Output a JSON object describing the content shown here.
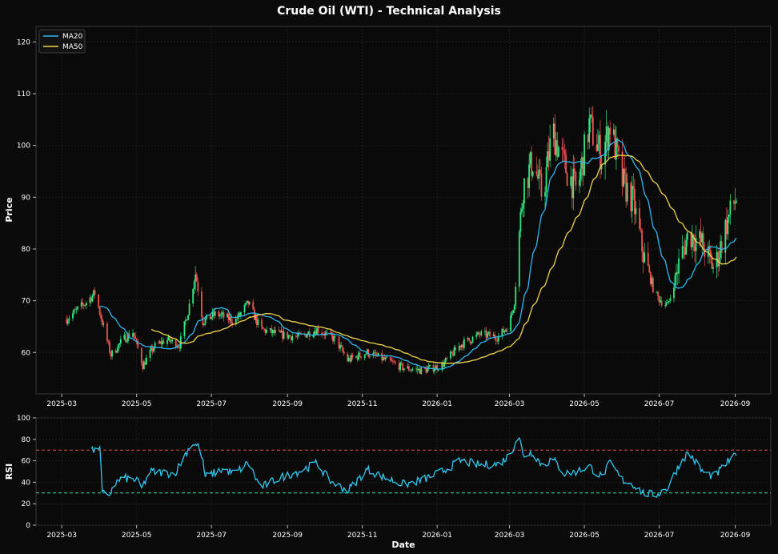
{
  "chart_data": [
    {
      "type": "candlestick",
      "title": "Crude Oil (WTI) - Technical Analysis",
      "xlabel": "",
      "ylabel": "Price",
      "xlim": [
        "2025-02-08",
        "2026-09-30"
      ],
      "ylim": [
        52,
        123
      ],
      "yticks": [
        60,
        70,
        80,
        90,
        100,
        110,
        120
      ],
      "xticks": [
        "2025-03",
        "2025-05",
        "2025-07",
        "2025-09",
        "2025-11",
        "2026-01",
        "2026-03",
        "2026-05",
        "2026-07",
        "2026-09"
      ],
      "grid": true,
      "legend_position": "top-left",
      "up_color": "#2ee882",
      "down_color": "#ef5350",
      "price_anchors": [
        [
          "2025-03-05",
          66.5
        ],
        [
          "2025-03-20",
          69.5
        ],
        [
          "2025-03-28",
          71.5
        ],
        [
          "2025-04-05",
          64.0
        ],
        [
          "2025-04-10",
          59.5
        ],
        [
          "2025-04-20",
          62.5
        ],
        [
          "2025-04-28",
          64.0
        ],
        [
          "2025-05-06",
          57.5
        ],
        [
          "2025-05-15",
          61.0
        ],
        [
          "2025-05-25",
          62.5
        ],
        [
          "2025-06-05",
          61.5
        ],
        [
          "2025-06-12",
          68.0
        ],
        [
          "2025-06-18",
          75.5
        ],
        [
          "2025-06-24",
          66.0
        ],
        [
          "2025-07-05",
          67.5
        ],
        [
          "2025-07-20",
          66.0
        ],
        [
          "2025-07-31",
          69.5
        ],
        [
          "2025-08-10",
          64.5
        ],
        [
          "2025-08-25",
          63.5
        ],
        [
          "2025-09-10",
          63.0
        ],
        [
          "2025-09-25",
          64.5
        ],
        [
          "2025-10-10",
          62.5
        ],
        [
          "2025-10-20",
          58.5
        ],
        [
          "2025-11-05",
          60.0
        ],
        [
          "2025-11-20",
          58.5
        ],
        [
          "2025-12-05",
          57.0
        ],
        [
          "2025-12-20",
          56.5
        ],
        [
          "2026-01-05",
          57.5
        ],
        [
          "2026-01-20",
          61.5
        ],
        [
          "2026-02-05",
          63.5
        ],
        [
          "2026-02-20",
          63.0
        ],
        [
          "2026-03-01",
          65.5
        ],
        [
          "2026-03-05",
          70.0
        ],
        [
          "2026-03-08",
          80.0
        ],
        [
          "2026-03-12",
          92.0
        ],
        [
          "2026-03-20",
          97.0
        ],
        [
          "2026-03-28",
          90.0
        ],
        [
          "2026-04-05",
          103.0
        ],
        [
          "2026-04-15",
          96.0
        ],
        [
          "2026-04-25",
          91.0
        ],
        [
          "2026-05-05",
          104.0
        ],
        [
          "2026-05-15",
          98.0
        ],
        [
          "2026-05-22",
          104.0
        ],
        [
          "2026-06-01",
          93.0
        ],
        [
          "2026-06-10",
          89.0
        ],
        [
          "2026-06-18",
          79.0
        ],
        [
          "2026-06-28",
          71.0
        ],
        [
          "2026-07-08",
          69.0
        ],
        [
          "2026-07-18",
          78.0
        ],
        [
          "2026-07-25",
          83.0
        ],
        [
          "2026-08-05",
          81.0
        ],
        [
          "2026-08-15",
          76.0
        ],
        [
          "2026-08-25",
          85.0
        ],
        [
          "2026-09-02",
          90.0
        ]
      ],
      "series": [
        {
          "name": "MA20",
          "color": "#2fb8f0"
        },
        {
          "name": "MA50",
          "color": "#f0d44a"
        }
      ]
    },
    {
      "type": "line",
      "title": "",
      "xlabel": "Date",
      "ylabel": "RSI",
      "ylim": [
        0,
        100
      ],
      "yticks": [
        0,
        20,
        40,
        60,
        80,
        100
      ],
      "xticks": [
        "2025-03",
        "2025-05",
        "2025-07",
        "2025-09",
        "2025-11",
        "2026-01",
        "2026-03",
        "2026-05",
        "2026-07",
        "2026-09"
      ],
      "grid": true,
      "reference_lines": [
        {
          "value": 70,
          "color": "#d9534f"
        },
        {
          "value": 30,
          "color": "#2ee8a0"
        }
      ],
      "series": [
        {
          "name": "RSI",
          "color": "#2fc8f0",
          "anchors": [
            [
              "2025-03-25",
              72
            ],
            [
              "2025-03-28",
              68
            ],
            [
              "2025-04-01",
              75
            ],
            [
              "2025-04-03",
              30
            ],
            [
              "2025-04-08",
              25
            ],
            [
              "2025-04-12",
              38
            ],
            [
              "2025-04-20",
              44
            ],
            [
              "2025-05-01",
              42
            ],
            [
              "2025-05-05",
              34
            ],
            [
              "2025-05-12",
              50
            ],
            [
              "2025-06-01",
              48
            ],
            [
              "2025-06-15",
              77
            ],
            [
              "2025-06-22",
              72
            ],
            [
              "2025-06-26",
              45
            ],
            [
              "2025-07-10",
              52
            ],
            [
              "2025-07-20",
              48
            ],
            [
              "2025-07-31",
              58
            ],
            [
              "2025-08-10",
              35
            ],
            [
              "2025-08-25",
              44
            ],
            [
              "2025-09-10",
              50
            ],
            [
              "2025-09-25",
              58
            ],
            [
              "2025-10-05",
              42
            ],
            [
              "2025-10-20",
              32
            ],
            [
              "2025-11-05",
              52
            ],
            [
              "2025-11-20",
              44
            ],
            [
              "2025-12-05",
              38
            ],
            [
              "2025-12-20",
              42
            ],
            [
              "2026-01-05",
              50
            ],
            [
              "2026-01-20",
              60
            ],
            [
              "2026-02-05",
              56
            ],
            [
              "2026-02-20",
              57
            ],
            [
              "2026-03-01",
              65
            ],
            [
              "2026-03-05",
              75
            ],
            [
              "2026-03-08",
              88
            ],
            [
              "2026-03-12",
              65
            ],
            [
              "2026-03-20",
              68
            ],
            [
              "2026-03-28",
              55
            ],
            [
              "2026-04-05",
              62
            ],
            [
              "2026-04-15",
              48
            ],
            [
              "2026-04-25",
              50
            ],
            [
              "2026-05-05",
              55
            ],
            [
              "2026-05-15",
              45
            ],
            [
              "2026-05-22",
              58
            ],
            [
              "2026-06-01",
              42
            ],
            [
              "2026-06-10",
              38
            ],
            [
              "2026-06-18",
              30
            ],
            [
              "2026-06-28",
              28
            ],
            [
              "2026-07-08",
              35
            ],
            [
              "2026-07-18",
              58
            ],
            [
              "2026-07-25",
              68
            ],
            [
              "2026-08-05",
              50
            ],
            [
              "2026-08-15",
              45
            ],
            [
              "2026-08-25",
              58
            ],
            [
              "2026-09-02",
              65
            ]
          ]
        }
      ]
    }
  ]
}
